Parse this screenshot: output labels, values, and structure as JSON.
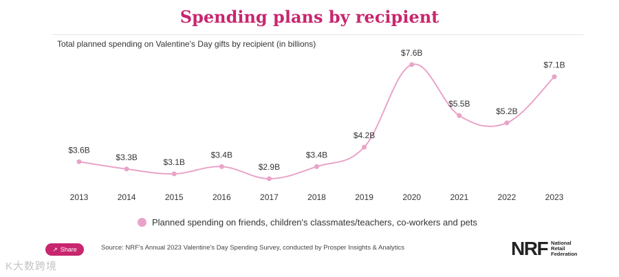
{
  "header": {
    "title": "Spending plans by recipient",
    "subtitle": "Total planned spending on Valentine's Day gifts by recipient (in billions)"
  },
  "chart_data": {
    "type": "line",
    "title": "Spending plans by recipient",
    "subtitle": "Total planned spending on Valentine's Day gifts by recipient (in billions)",
    "x": [
      "2013",
      "2014",
      "2015",
      "2016",
      "2017",
      "2018",
      "2019",
      "2020",
      "2021",
      "2022",
      "2023"
    ],
    "series": [
      {
        "name": "Planned spending on friends, children's classmates/teachers, co-workers and pets",
        "values": [
          3.6,
          3.3,
          3.1,
          3.4,
          2.9,
          3.4,
          4.2,
          7.6,
          5.5,
          5.2,
          7.1
        ],
        "labels": [
          "$3.6B",
          "$3.3B",
          "$3.1B",
          "$3.4B",
          "$2.9B",
          "$3.4B",
          "$4.2B",
          "$7.6B",
          "$5.5B",
          "$5.2B",
          "$7.1B"
        ],
        "color": "#e9a3c8"
      }
    ],
    "xlabel": "",
    "ylabel": "",
    "grid": false,
    "legend": "bottom"
  },
  "legend": {
    "label": "Planned spending on friends, children's classmates/teachers, co-workers and pets"
  },
  "footer": {
    "share_label": "Share",
    "share_icon": "share-icon",
    "source": "Source: NRF's Annual 2023 Valentine's Day Spending Survey, conducted by Prosper Insights & Analytics",
    "logo_mark": "NRF",
    "logo_name": [
      "National",
      "Retail",
      "Federation"
    ],
    "watermark": "K大数跨境"
  },
  "colors": {
    "accent": "#c8266e",
    "series": "#e9a3c8",
    "text": "#333333"
  }
}
